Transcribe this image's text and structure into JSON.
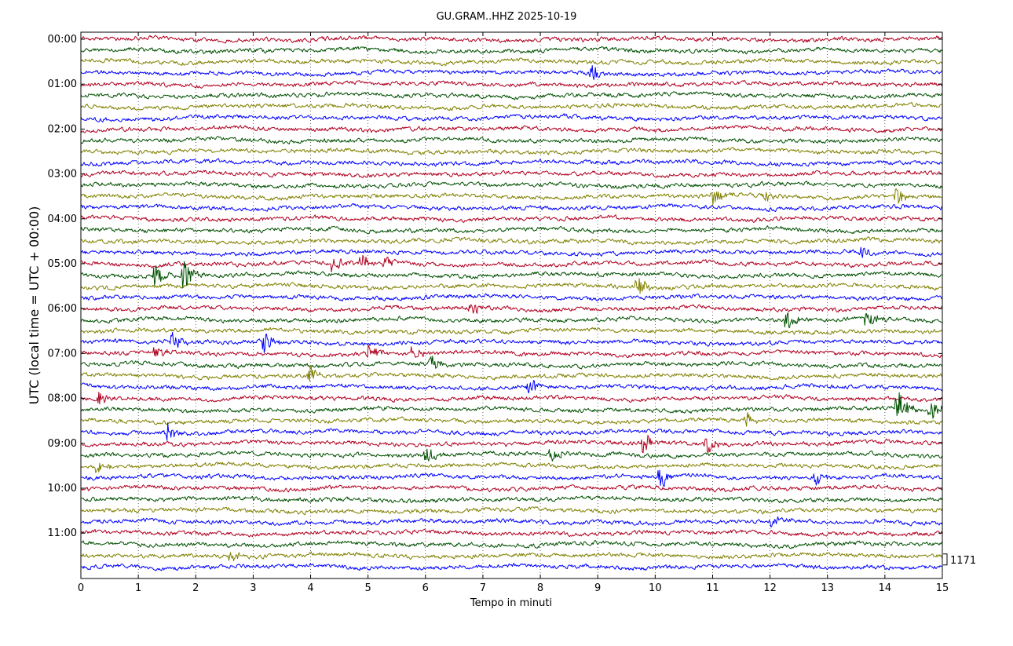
{
  "chart_data": {
    "type": "line",
    "title": "GU.GRAM..HHZ 2025-10-19",
    "xlabel": "Tempo in minuti",
    "ylabel": "UTC (local time = UTC + 00:00)",
    "xlim": [
      0,
      15
    ],
    "x_ticks": [
      "0",
      "1",
      "2",
      "3",
      "4",
      "5",
      "6",
      "7",
      "8",
      "9",
      "10",
      "11",
      "12",
      "13",
      "14",
      "15"
    ],
    "y_tick_labels": [
      "00:00",
      "01:00",
      "02:00",
      "03:00",
      "04:00",
      "05:00",
      "06:00",
      "07:00",
      "08:00",
      "09:00",
      "10:00",
      "11:00"
    ],
    "trace_interval_minutes": 15,
    "trace_count": 48,
    "trace_colors": [
      "#b00020",
      "#005000",
      "#808000",
      "#0000ff"
    ],
    "scale_label": "1171",
    "grid": "vertical dotted at each minute",
    "events": [
      {
        "trace": 3,
        "minute": 8.9,
        "amp": 1.2
      },
      {
        "trace": 14,
        "minute": 11.0,
        "amp": 1.0
      },
      {
        "trace": 14,
        "minute": 11.9,
        "amp": 0.6
      },
      {
        "trace": 14,
        "minute": 14.2,
        "amp": 0.9
      },
      {
        "trace": 19,
        "minute": 13.6,
        "amp": 0.8
      },
      {
        "trace": 20,
        "minute": 4.4,
        "amp": 1.2
      },
      {
        "trace": 20,
        "minute": 4.9,
        "amp": 0.9
      },
      {
        "trace": 20,
        "minute": 5.3,
        "amp": 0.7
      },
      {
        "trace": 21,
        "minute": 1.3,
        "amp": 1.1
      },
      {
        "trace": 21,
        "minute": 1.8,
        "amp": 1.6
      },
      {
        "trace": 22,
        "minute": 9.7,
        "amp": 1.2
      },
      {
        "trace": 24,
        "minute": 6.8,
        "amp": 0.9
      },
      {
        "trace": 25,
        "minute": 12.3,
        "amp": 1.0
      },
      {
        "trace": 25,
        "minute": 13.7,
        "amp": 1.0
      },
      {
        "trace": 27,
        "minute": 1.6,
        "amp": 1.0
      },
      {
        "trace": 27,
        "minute": 3.2,
        "amp": 1.2
      },
      {
        "trace": 28,
        "minute": 1.3,
        "amp": 0.8
      },
      {
        "trace": 28,
        "minute": 5.0,
        "amp": 0.9
      },
      {
        "trace": 28,
        "minute": 5.8,
        "amp": 0.9
      },
      {
        "trace": 29,
        "minute": 6.1,
        "amp": 0.9
      },
      {
        "trace": 30,
        "minute": 4.0,
        "amp": 1.2
      },
      {
        "trace": 31,
        "minute": 7.8,
        "amp": 0.9
      },
      {
        "trace": 32,
        "minute": 0.3,
        "amp": 0.9
      },
      {
        "trace": 33,
        "minute": 14.2,
        "amp": 2.6
      },
      {
        "trace": 33,
        "minute": 14.8,
        "amp": 1.2
      },
      {
        "trace": 34,
        "minute": 11.6,
        "amp": 0.8
      },
      {
        "trace": 35,
        "minute": 1.5,
        "amp": 1.1
      },
      {
        "trace": 36,
        "minute": 9.8,
        "amp": 1.0
      },
      {
        "trace": 36,
        "minute": 10.9,
        "amp": 1.0
      },
      {
        "trace": 37,
        "minute": 6.0,
        "amp": 1.0
      },
      {
        "trace": 37,
        "minute": 8.2,
        "amp": 0.9
      },
      {
        "trace": 38,
        "minute": 0.3,
        "amp": 0.7
      },
      {
        "trace": 39,
        "minute": 10.1,
        "amp": 1.2
      },
      {
        "trace": 39,
        "minute": 12.8,
        "amp": 0.9
      },
      {
        "trace": 43,
        "minute": 12.0,
        "amp": 0.7
      },
      {
        "trace": 46,
        "minute": 2.6,
        "amp": 0.6
      }
    ]
  }
}
